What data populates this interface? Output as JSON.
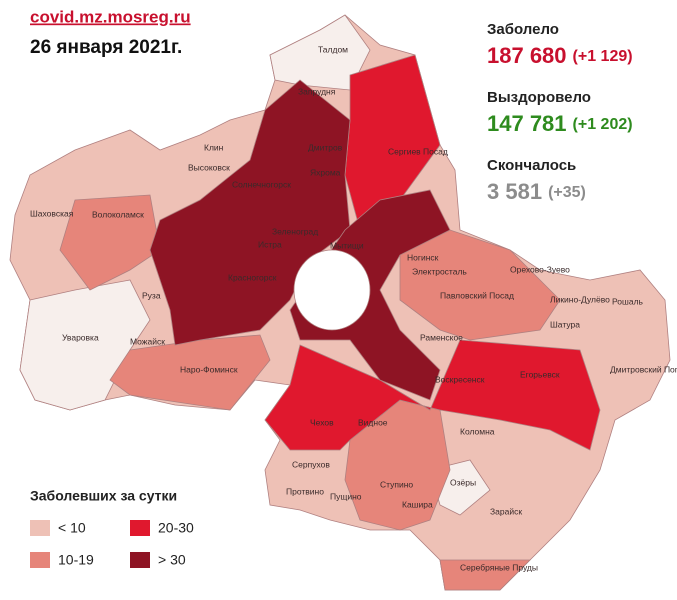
{
  "header": {
    "source": "covid.mz.mosreg.ru",
    "date": "26 января 2021г."
  },
  "stats": [
    {
      "label": "Заболело",
      "value": "187 680",
      "delta": "(+1 129)",
      "color": "#c8102e"
    },
    {
      "label": "Выздоровело",
      "value": "147 781",
      "delta": "(+1 202)",
      "color": "#2e8b1e"
    },
    {
      "label": "Скончалось",
      "value": "3 581",
      "delta": "(+35)",
      "color": "#8c8c8c"
    }
  ],
  "legend": {
    "title": "Заболевших за сутки",
    "items": [
      {
        "label": "< 10",
        "color": "#eec1b6"
      },
      {
        "label": "10-19",
        "color": "#e6857a"
      },
      {
        "label": "20-30",
        "color": "#e0182e"
      },
      {
        "label": "> 30",
        "color": "#8e1424"
      }
    ]
  },
  "map": {
    "labels": [
      "Талдом",
      "Запрудня",
      "Клин",
      "Высоковск",
      "Дмитров",
      "Яхрома",
      "Сергиев Посад",
      "Солнечногорск",
      "Шаховская",
      "Волоколамск",
      "Зеленоград",
      "Истра",
      "Красногорск",
      "Мытищи",
      "Ногинск",
      "Электросталь",
      "Орехово-Зуево",
      "Павловский Посад",
      "Ликино-Дулёво",
      "Рошаль",
      "Руза",
      "Уваровка",
      "Можайск",
      "Шатура",
      "Раменское",
      "Наро-Фоминск",
      "Воскресенск",
      "Егорьевск",
      "Дмитровский Погост",
      "Чехов",
      "Видное",
      "Коломна",
      "Серпухов",
      "Ступино",
      "Озёры",
      "Протвино",
      "Пущино",
      "Кашира",
      "Зарайск",
      "Серебряные Пруды"
    ]
  }
}
